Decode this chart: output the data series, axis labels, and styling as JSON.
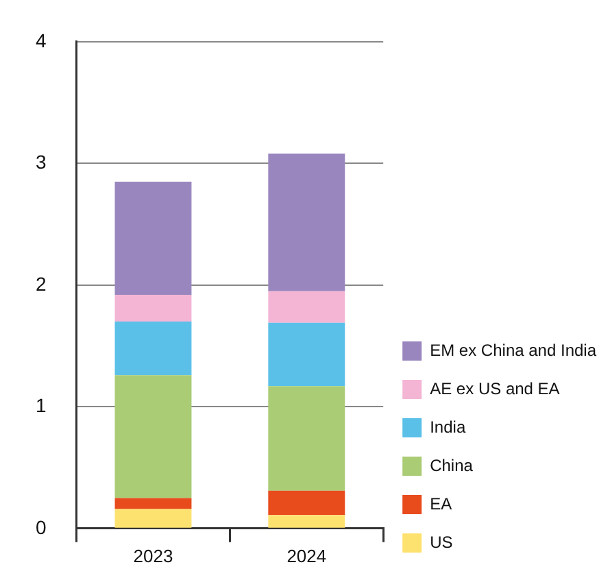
{
  "chart_data": {
    "type": "bar",
    "stacked": true,
    "categories": [
      "2023",
      "2024"
    ],
    "series": [
      {
        "name": "US",
        "color": "#fee270",
        "values": [
          0.16,
          0.11
        ]
      },
      {
        "name": "EA",
        "color": "#e84b1c",
        "values": [
          0.09,
          0.2
        ]
      },
      {
        "name": "China",
        "color": "#a9cc75",
        "values": [
          1.01,
          0.86
        ]
      },
      {
        "name": "India",
        "color": "#5bc0e8",
        "values": [
          0.44,
          0.52
        ]
      },
      {
        "name": "AE ex US and EA",
        "color": "#f4b5d5",
        "values": [
          0.22,
          0.26
        ]
      },
      {
        "name": "EM ex China and India",
        "color": "#9986be",
        "values": [
          0.93,
          1.13
        ]
      }
    ],
    "ylim": [
      0,
      4
    ],
    "yticks": [
      0,
      1,
      2,
      3,
      4
    ],
    "grid": "y",
    "legend": "right"
  }
}
